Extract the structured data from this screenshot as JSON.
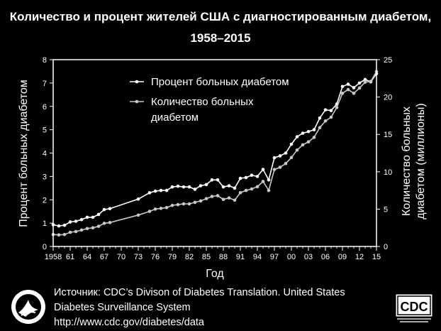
{
  "title_line1": "Количество и процент жителей США с диагностированным диабетом,",
  "title_line2": "1958–2015",
  "source_line1": "Источник: CDC’s Divison of Diabetes Translation. United States",
  "source_line2": "Diabetes Surveillance System",
  "source_line3": "http://www.cdc.gov/diabetes/data",
  "logo_cdc_text": "CDC",
  "colors": {
    "background": "#000000",
    "line_percent": "#ffffff",
    "line_count": "#c8c8c8"
  },
  "chart_data": {
    "type": "line",
    "title": "Количество и процент жителей США с диагностированным диабетом, 1958–2015",
    "xlabel": "Год",
    "ylabel": "Процент больных диабетом",
    "y2label_line1": "Количество больных",
    "y2label_line2": "диабетом (миллионы)",
    "xlim": [
      1958,
      2015
    ],
    "ylim": [
      0,
      8
    ],
    "y2lim": [
      0,
      25
    ],
    "x_ticks": [
      {
        "year": 1958,
        "label": "1958"
      },
      {
        "year": 1961,
        "label": "61"
      },
      {
        "year": 1964,
        "label": "64"
      },
      {
        "year": 1967,
        "label": "67"
      },
      {
        "year": 1970,
        "label": "70"
      },
      {
        "year": 1973,
        "label": "73"
      },
      {
        "year": 1976,
        "label": "76"
      },
      {
        "year": 1979,
        "label": "79"
      },
      {
        "year": 1982,
        "label": "82"
      },
      {
        "year": 1985,
        "label": "85"
      },
      {
        "year": 1988,
        "label": "88"
      },
      {
        "year": 1991,
        "label": "91"
      },
      {
        "year": 1994,
        "label": "94"
      },
      {
        "year": 1997,
        "label": "97"
      },
      {
        "year": 2000,
        "label": "00"
      },
      {
        "year": 2003,
        "label": "03"
      },
      {
        "year": 2006,
        "label": "06"
      },
      {
        "year": 2009,
        "label": "09"
      },
      {
        "year": 2012,
        "label": "12"
      },
      {
        "year": 2015,
        "label": "15"
      }
    ],
    "y_ticks": [
      "0",
      "1",
      "2",
      "3",
      "4",
      "5",
      "6",
      "7",
      "8"
    ],
    "y2_ticks": [
      "0",
      "5",
      "10",
      "15",
      "20",
      "25"
    ],
    "legend": [
      "Процент больных диабетом",
      "Количество больных диабетом"
    ],
    "legend_lines": [
      [
        "Процент больных диабетом"
      ],
      [
        "Количество больных",
        "диабетом"
      ]
    ],
    "legend_position": "top-left",
    "series": [
      {
        "name": "Процент больных диабетом",
        "axis": "left",
        "x": [
          1958,
          1959,
          1960,
          1961,
          1962,
          1963,
          1964,
          1965,
          1966,
          1967,
          1968,
          1973,
          1975,
          1976,
          1977,
          1978,
          1979,
          1980,
          1981,
          1982,
          1983,
          1984,
          1985,
          1986,
          1987,
          1988,
          1989,
          1990,
          1991,
          1992,
          1993,
          1994,
          1995,
          1996,
          1997,
          1998,
          1999,
          2000,
          2001,
          2002,
          2003,
          2004,
          2005,
          2006,
          2007,
          2008,
          2009,
          2010,
          2011,
          2012,
          2013,
          2014,
          2015
        ],
        "y": [
          0.93,
          0.88,
          0.91,
          1.05,
          1.08,
          1.15,
          1.25,
          1.25,
          1.37,
          1.58,
          1.62,
          2.03,
          2.3,
          2.37,
          2.4,
          2.4,
          2.55,
          2.58,
          2.55,
          2.55,
          2.45,
          2.6,
          2.65,
          2.85,
          2.85,
          2.55,
          2.6,
          2.5,
          2.92,
          2.95,
          3.05,
          3.0,
          3.3,
          2.85,
          3.8,
          3.88,
          4.0,
          4.38,
          4.7,
          4.85,
          4.92,
          5.0,
          5.5,
          5.85,
          5.82,
          6.1,
          6.85,
          6.95,
          6.8,
          7.0,
          7.15,
          7.05,
          7.4
        ]
      },
      {
        "name": "Количество больных диабетом",
        "axis": "right",
        "x": [
          1958,
          1959,
          1960,
          1961,
          1962,
          1963,
          1964,
          1965,
          1966,
          1967,
          1968,
          1973,
          1975,
          1976,
          1977,
          1978,
          1979,
          1980,
          1981,
          1982,
          1983,
          1984,
          1985,
          1986,
          1987,
          1988,
          1989,
          1990,
          1991,
          1992,
          1993,
          1994,
          1995,
          1996,
          1997,
          1998,
          1999,
          2000,
          2001,
          2002,
          2003,
          2004,
          2005,
          2006,
          2007,
          2008,
          2009,
          2010,
          2011,
          2012,
          2013,
          2014,
          2015
        ],
        "y": [
          1.6,
          1.55,
          1.6,
          1.9,
          2.0,
          2.2,
          2.4,
          2.5,
          2.7,
          3.1,
          3.2,
          4.2,
          4.7,
          5.0,
          5.1,
          5.2,
          5.5,
          5.6,
          5.7,
          5.7,
          5.9,
          6.1,
          6.4,
          6.7,
          6.8,
          6.3,
          6.5,
          6.2,
          7.2,
          7.5,
          7.7,
          8.0,
          8.7,
          7.5,
          10.3,
          10.6,
          11.1,
          11.9,
          12.9,
          13.6,
          14.0,
          14.6,
          15.9,
          16.8,
          17.3,
          18.6,
          20.5,
          21.0,
          20.5,
          21.2,
          22.0,
          22.1,
          23.4
        ]
      }
    ]
  }
}
